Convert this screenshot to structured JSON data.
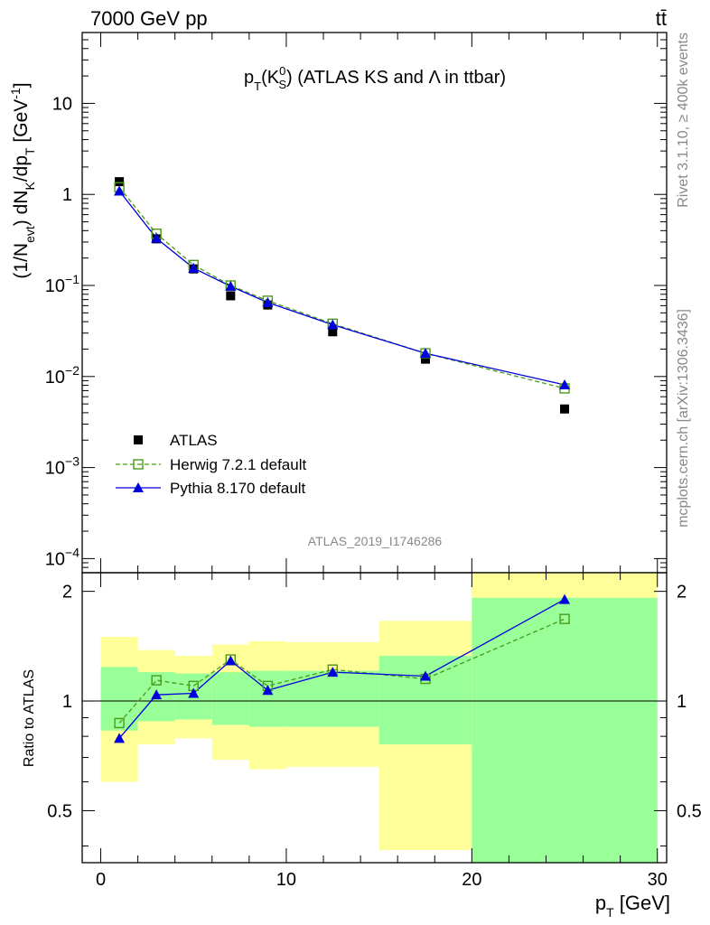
{
  "header": {
    "energy_label": "7000 GeV pp",
    "process_label": "tt̄"
  },
  "side": {
    "rivet_label": "Rivet 3.1.10, ≥ 400k events",
    "mcplots_label": "mcplots.cern.ch [arXiv:1306.3436]"
  },
  "chart_data": [
    {
      "type": "scatter",
      "panel": "main",
      "title": "pT(KS0) (ATLAS KS and Λ in ttbar)",
      "xlabel": "pT [GeV]",
      "ylabel": "(1/Nevt) dNK/dpT [GeV-1]",
      "xlim": [
        -1,
        30.5
      ],
      "ylim": [
        7e-05,
        60
      ],
      "yscale": "log",
      "y_ticks": [
        {
          "value": 0.0001,
          "label_base": "10",
          "label_exp": "−4"
        },
        {
          "value": 0.001,
          "label_base": "10",
          "label_exp": "−3"
        },
        {
          "value": 0.01,
          "label_base": "10",
          "label_exp": "−2"
        },
        {
          "value": 0.1,
          "label_base": "10",
          "label_exp": "−1"
        },
        {
          "value": 1,
          "label_base": "1",
          "label_exp": ""
        },
        {
          "value": 10,
          "label_base": "10",
          "label_exp": ""
        }
      ],
      "watermark": "ATLAS_2019_I1746286",
      "legend_position": "bottom-left",
      "series": [
        {
          "name": "ATLAS",
          "color": "#000000",
          "marker": "filled-square",
          "x": [
            1,
            3,
            5,
            7,
            9,
            12.5,
            17.5,
            25
          ],
          "y": [
            1.38,
            0.325,
            0.152,
            0.077,
            0.061,
            0.031,
            0.0155,
            0.0044
          ]
        },
        {
          "name": "Herwig 7.2.1 default",
          "color": "#4a9a1a",
          "marker": "open-square",
          "line": "dashed",
          "x": [
            1,
            3,
            5,
            7,
            9,
            12.5,
            17.5,
            25
          ],
          "y": [
            1.2,
            0.37,
            0.168,
            0.1,
            0.068,
            0.038,
            0.018,
            0.0074
          ]
        },
        {
          "name": "Pythia 8.170 default",
          "color": "#0000dd",
          "marker": "filled-triangle",
          "line": "solid",
          "x": [
            1,
            3,
            5,
            7,
            9,
            12.5,
            17.5,
            25
          ],
          "y": [
            1.09,
            0.33,
            0.155,
            0.098,
            0.065,
            0.037,
            0.018,
            0.0081
          ]
        }
      ]
    },
    {
      "type": "scatter",
      "panel": "ratio",
      "ylabel": "Ratio to ATLAS",
      "xlabel": "pT [GeV]",
      "xlim": [
        -1,
        30.5
      ],
      "ylim": [
        0.36,
        2.25
      ],
      "yscale": "log",
      "x_ticks": [
        0,
        10,
        20,
        30
      ],
      "y_ticks": [
        0.5,
        1,
        2
      ],
      "uncertainty_bands": [
        {
          "x0": 0,
          "x1": 2,
          "green_lo": 0.83,
          "green_hi": 1.24,
          "yellow_lo": 0.6,
          "yellow_hi": 1.5
        },
        {
          "x0": 2,
          "x1": 4,
          "green_lo": 0.88,
          "green_hi": 1.2,
          "yellow_lo": 0.76,
          "yellow_hi": 1.38
        },
        {
          "x0": 4,
          "x1": 6,
          "green_lo": 0.89,
          "green_hi": 1.19,
          "yellow_lo": 0.79,
          "yellow_hi": 1.33
        },
        {
          "x0": 6,
          "x1": 8,
          "green_lo": 0.86,
          "green_hi": 1.2,
          "yellow_lo": 0.69,
          "yellow_hi": 1.43
        },
        {
          "x0": 8,
          "x1": 10,
          "green_lo": 0.85,
          "green_hi": 1.21,
          "yellow_lo": 0.65,
          "yellow_hi": 1.46
        },
        {
          "x0": 10,
          "x1": 15,
          "green_lo": 0.85,
          "green_hi": 1.21,
          "yellow_lo": 0.66,
          "yellow_hi": 1.45
        },
        {
          "x0": 15,
          "x1": 20,
          "green_lo": 0.76,
          "green_hi": 1.33,
          "yellow_lo": 0.39,
          "yellow_hi": 1.66
        },
        {
          "x0": 20,
          "x1": 30,
          "green_lo": 0.1,
          "green_hi": 1.92,
          "yellow_lo": 0.1,
          "yellow_hi": 10
        }
      ],
      "series": [
        {
          "name": "Herwig 7.2.1 default",
          "color": "#4a9a1a",
          "x": [
            1,
            3,
            5,
            7,
            9,
            12.5,
            17.5,
            25
          ],
          "y": [
            0.87,
            1.14,
            1.1,
            1.3,
            1.1,
            1.22,
            1.15,
            1.68
          ]
        },
        {
          "name": "Pythia 8.170 default",
          "color": "#0000dd",
          "x": [
            1,
            3,
            5,
            7,
            9,
            12.5,
            17.5,
            25
          ],
          "y": [
            0.79,
            1.04,
            1.05,
            1.29,
            1.07,
            1.2,
            1.17,
            1.9
          ]
        }
      ]
    }
  ]
}
